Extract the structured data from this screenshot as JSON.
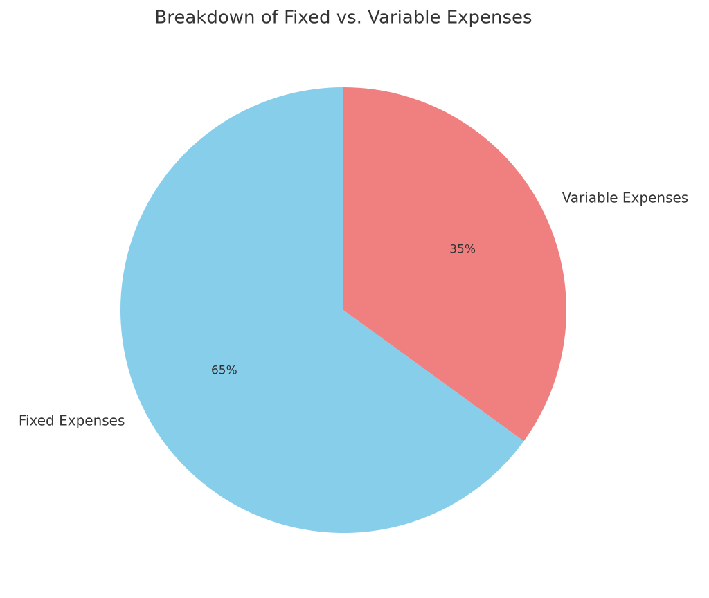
{
  "chart_data": {
    "type": "pie",
    "title": "Breakdown of Fixed vs. Variable Expenses",
    "categories": [
      "Fixed Expenses",
      "Variable Expenses"
    ],
    "values": [
      65,
      35
    ],
    "value_labels": [
      "65%",
      "35%"
    ],
    "colors": [
      "#87ceeb",
      "#f08080"
    ]
  }
}
